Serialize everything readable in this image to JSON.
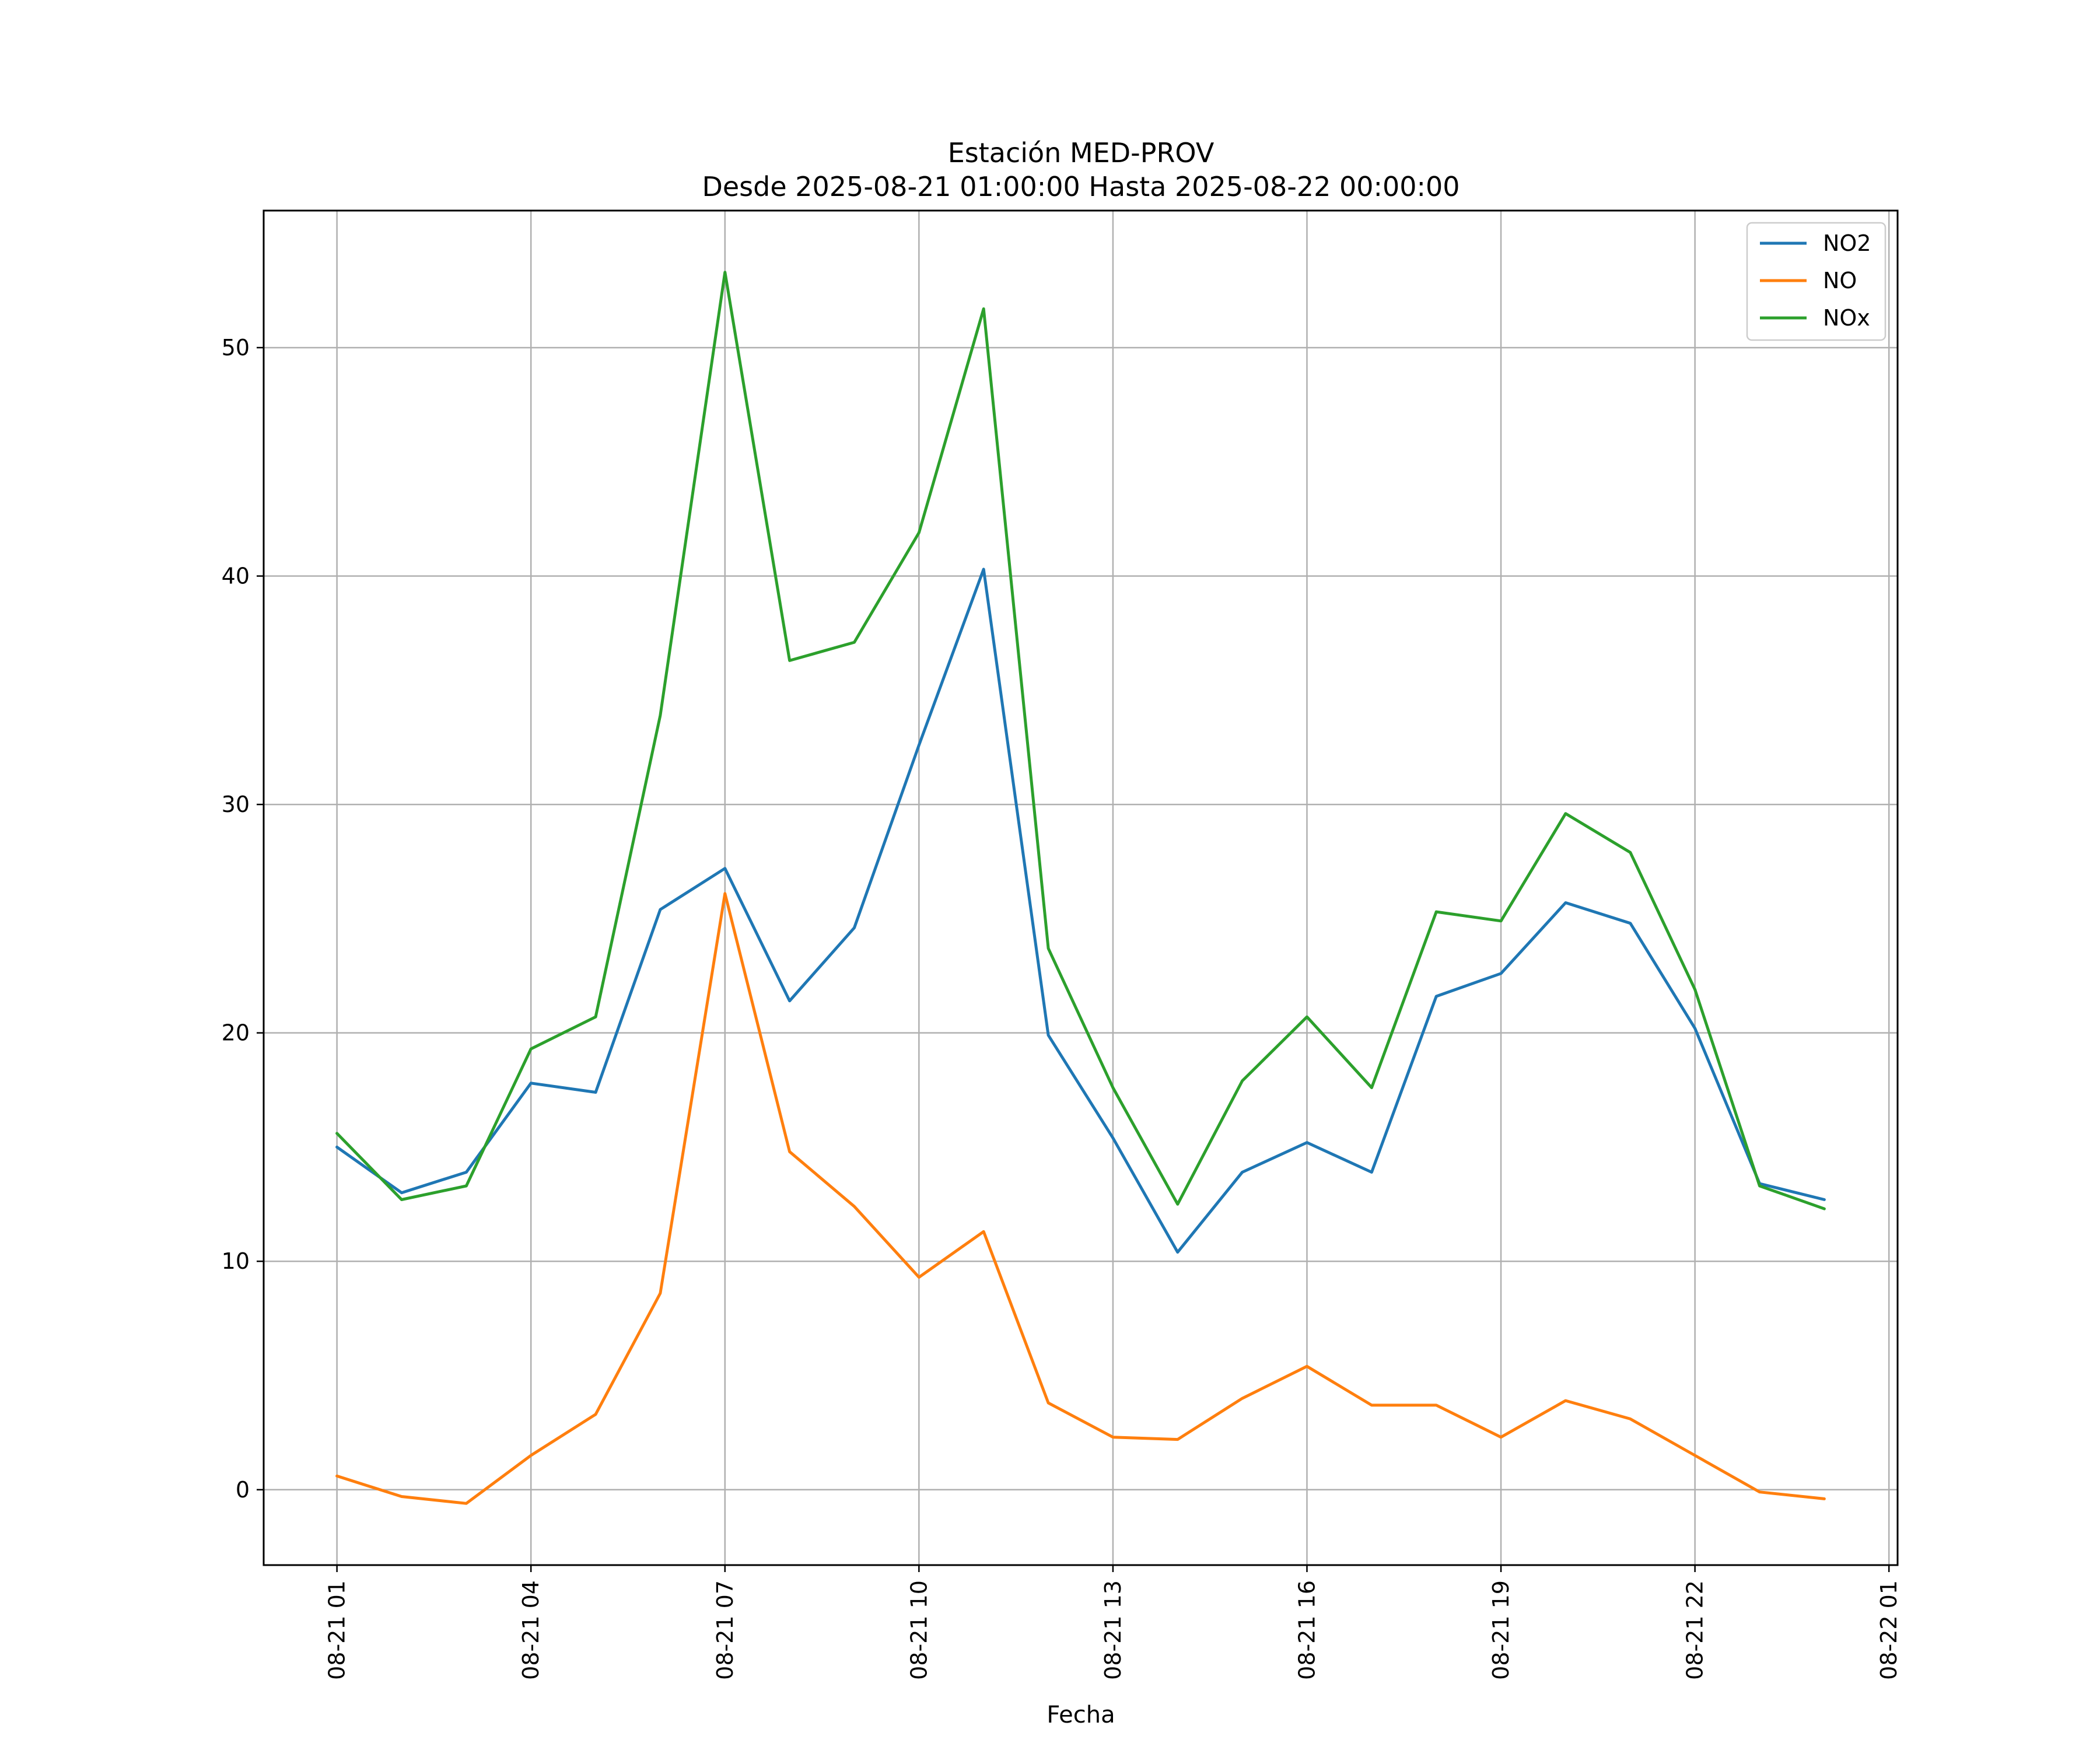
{
  "chart_data": {
    "type": "line",
    "title": "Estación MED-PROV",
    "subtitle": "Desde 2025-08-21 01:00:00 Hasta 2025-08-22 00:00:00",
    "xlabel": "Fecha",
    "ylabel": "",
    "x": [
      "2025-08-21 01:00",
      "2025-08-21 02:00",
      "2025-08-21 03:00",
      "2025-08-21 04:00",
      "2025-08-21 05:00",
      "2025-08-21 06:00",
      "2025-08-21 07:00",
      "2025-08-21 08:00",
      "2025-08-21 09:00",
      "2025-08-21 10:00",
      "2025-08-21 11:00",
      "2025-08-21 12:00",
      "2025-08-21 13:00",
      "2025-08-21 14:00",
      "2025-08-21 15:00",
      "2025-08-21 16:00",
      "2025-08-21 17:00",
      "2025-08-21 18:00",
      "2025-08-21 19:00",
      "2025-08-21 20:00",
      "2025-08-21 21:00",
      "2025-08-21 22:00",
      "2025-08-21 23:00",
      "2025-08-22 00:00"
    ],
    "x_ticks": [
      "08-21 01",
      "08-21 04",
      "08-21 07",
      "08-21 10",
      "08-21 13",
      "08-21 16",
      "08-21 19",
      "08-21 22",
      "08-22 01"
    ],
    "y_ticks": [
      "0",
      "10",
      "20",
      "30",
      "40",
      "50"
    ],
    "xlim": [
      "2025-08-20 23:52",
      "2025-08-22 01:08"
    ],
    "ylim": [
      -3.3,
      56
    ],
    "grid": true,
    "legend_position": "top-right",
    "series": [
      {
        "name": "NO2",
        "color": "#1f77b4",
        "values": [
          15.0,
          13.0,
          13.9,
          17.8,
          17.4,
          25.4,
          27.2,
          21.4,
          24.6,
          32.6,
          40.3,
          19.9,
          15.4,
          10.4,
          13.9,
          15.2,
          13.9,
          21.6,
          22.6,
          25.7,
          24.8,
          20.2,
          13.4,
          12.7
        ]
      },
      {
        "name": "NO",
        "color": "#ff7f0e",
        "values": [
          0.6,
          -0.3,
          -0.6,
          1.5,
          3.3,
          8.6,
          26.1,
          14.8,
          12.4,
          9.3,
          11.3,
          3.8,
          2.3,
          2.2,
          4.0,
          5.4,
          3.7,
          3.7,
          2.3,
          3.9,
          3.1,
          1.5,
          -0.1,
          -0.4
        ]
      },
      {
        "name": "NOx",
        "color": "#2ca02c",
        "values": [
          15.6,
          12.7,
          13.3,
          19.3,
          20.7,
          33.9,
          53.3,
          36.3,
          37.1,
          41.9,
          51.7,
          23.7,
          17.6,
          12.5,
          17.9,
          20.7,
          17.6,
          25.3,
          24.9,
          29.6,
          27.9,
          21.9,
          13.3,
          12.3
        ]
      }
    ]
  }
}
